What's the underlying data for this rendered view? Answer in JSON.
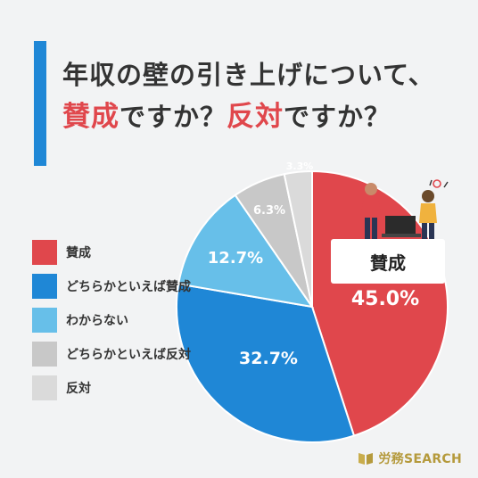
{
  "title": {
    "line1": "年収の壁の引き上げについて、",
    "line2_red1": "賛成",
    "line2_mid": "ですか？",
    "line2_red2": "反対",
    "line2_end": "ですか？"
  },
  "chart_data": {
    "type": "pie",
    "start_angle_deg": 0,
    "direction": "clockwise",
    "slices": [
      {
        "label": "賛成",
        "value": 45.0,
        "value_label": "45.0%",
        "color": "#e0474c"
      },
      {
        "label": "どちらかといえば賛成",
        "value": 32.7,
        "value_label": "32.7%",
        "color": "#1f87d6"
      },
      {
        "label": "わからない",
        "value": 12.7,
        "value_label": "12.7%",
        "color": "#67bfe9"
      },
      {
        "label": "どちらかといえば反対",
        "value": 6.3,
        "value_label": "6.3%",
        "color": "#c8c8c8"
      },
      {
        "label": "反対",
        "value": 3.3,
        "value_label": "3.3%",
        "color": "#dadada"
      }
    ],
    "legend": "left"
  },
  "callout": {
    "label": "賛成"
  },
  "logo": {
    "text": "労務SEARCH",
    "color": "#b59a3c"
  }
}
